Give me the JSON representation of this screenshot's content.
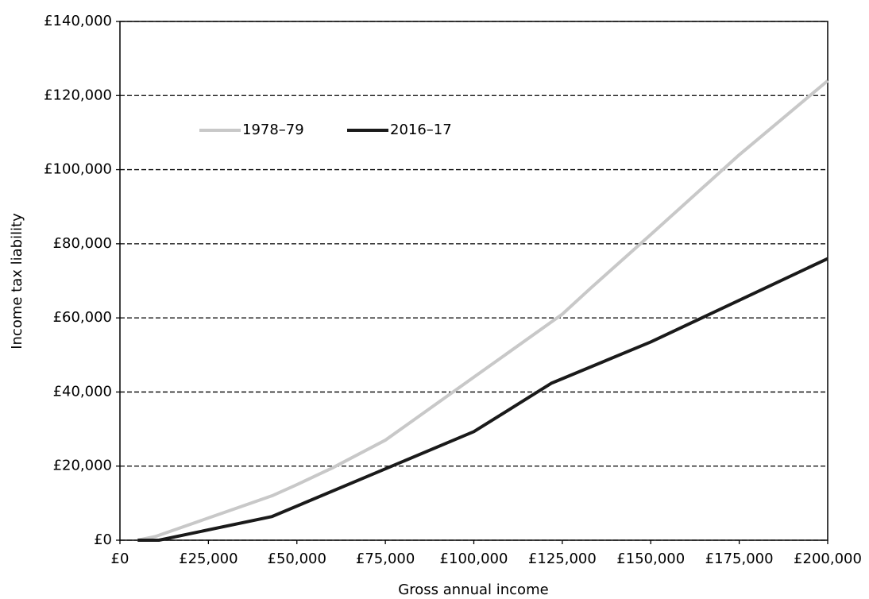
{
  "chart_data": {
    "type": "line",
    "x_label": "Gross annual income",
    "y_label": "Income tax liability",
    "xlim": [
      0,
      200000
    ],
    "ylim": [
      0,
      140000
    ],
    "xticks": [
      {
        "value": 0,
        "label": "£0"
      },
      {
        "value": 25000,
        "label": "£25,000"
      },
      {
        "value": 50000,
        "label": "£50,000"
      },
      {
        "value": 75000,
        "label": "£75,000"
      },
      {
        "value": 100000,
        "label": "£100,000"
      },
      {
        "value": 125000,
        "label": "£125,000"
      },
      {
        "value": 150000,
        "label": "£150,000"
      },
      {
        "value": 175000,
        "label": "£175,000"
      },
      {
        "value": 200000,
        "label": "£200,000"
      }
    ],
    "yticks": [
      {
        "value": 0,
        "label": "£0"
      },
      {
        "value": 20000,
        "label": "£20,000"
      },
      {
        "value": 40000,
        "label": "£40,000"
      },
      {
        "value": 60000,
        "label": "£60,000"
      },
      {
        "value": 80000,
        "label": "£80,000"
      },
      {
        "value": 100000,
        "label": "£100,000"
      },
      {
        "value": 120000,
        "label": "£120,000"
      },
      {
        "value": 140000,
        "label": "£140,000"
      }
    ],
    "grid": true,
    "legend_position": "upper left",
    "series": [
      {
        "name": "1978–79",
        "color": "#c8c8c8",
        "x": [
          5000,
          10000,
          25000,
          43000,
          50000,
          60000,
          75000,
          100000,
          125000,
          133000,
          150000,
          175000,
          200000
        ],
        "values": [
          0,
          1000,
          6000,
          12000,
          15000,
          19500,
          27000,
          44000,
          61000,
          68000,
          82500,
          104000,
          124000
        ]
      },
      {
        "name": "2016–17",
        "color": "#1a1a1a",
        "x": [
          5000,
          11000,
          43000,
          100000,
          122000,
          150000,
          200000
        ],
        "values": [
          0,
          0,
          6400,
          29300,
          42400,
          53500,
          76000
        ]
      }
    ]
  }
}
